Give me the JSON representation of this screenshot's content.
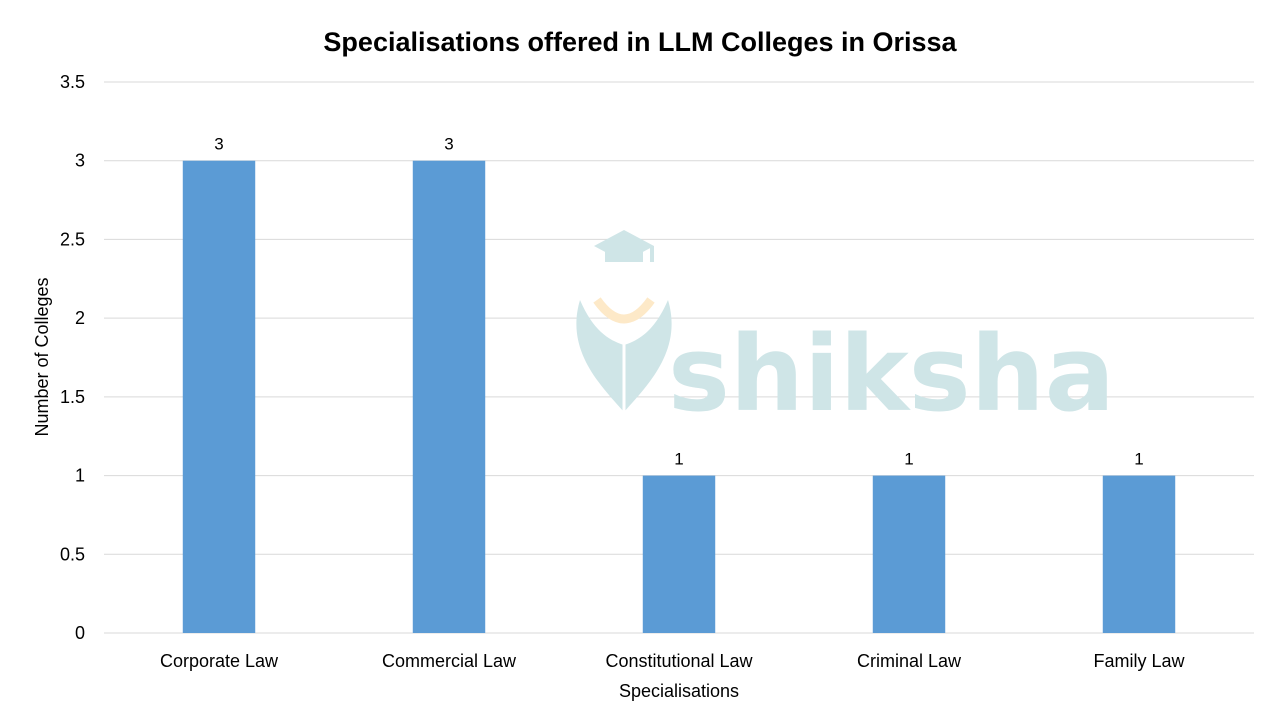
{
  "chart_data": {
    "type": "bar",
    "title": "Specialisations offered in LLM Colleges in Orissa",
    "xlabel": "Specialisations",
    "ylabel": "Number of Colleges",
    "categories": [
      "Corporate Law",
      "Commercial Law",
      "Constitutional Law",
      "Criminal Law",
      "Family Law"
    ],
    "values": [
      3,
      3,
      1,
      1,
      1
    ],
    "data_labels": [
      "3",
      "3",
      "1",
      "1",
      "1"
    ],
    "ylim": [
      0,
      3.5
    ],
    "yticks": [
      "0",
      "0.5",
      "1",
      "1.5",
      "2",
      "2.5",
      "3",
      "3.5"
    ],
    "grid": true,
    "bar_color": "#5b9bd5"
  },
  "watermark": {
    "text": "shiksha",
    "icon": "graduation-cap-pen-icon",
    "color": "#cfe5e7",
    "accent": "#fde9c8"
  }
}
